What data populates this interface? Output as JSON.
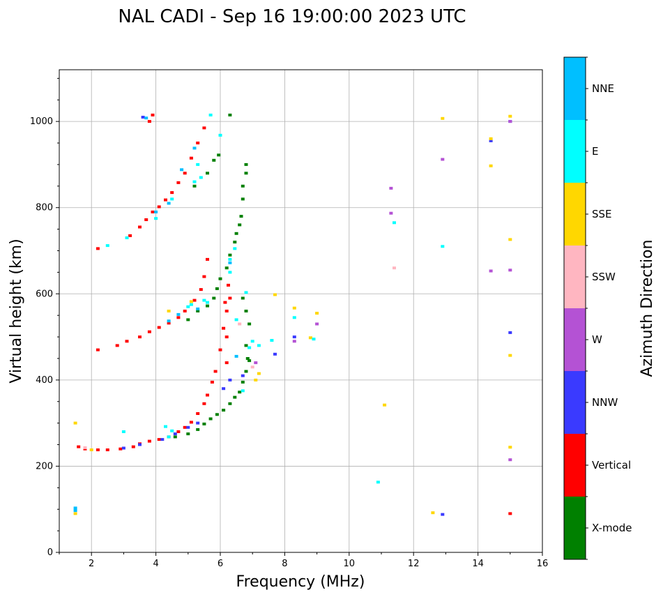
{
  "chart_data": {
    "type": "scatter",
    "title": "NAL CADI - Sep 16 19:00:00 2023 UTC",
    "xlabel": "Frequency (MHz)",
    "ylabel": "Virtual height (km)",
    "xlim": [
      1,
      16
    ],
    "ylim": [
      0,
      1120
    ],
    "xticks": [
      2,
      4,
      6,
      8,
      10,
      12,
      14,
      16
    ],
    "yticks": [
      0,
      200,
      400,
      600,
      800,
      1000
    ],
    "grid": true,
    "colorbar": {
      "label": "Azimuth Direction",
      "categories": [
        {
          "name": "X-mode",
          "color": "#008000"
        },
        {
          "name": "Vertical",
          "color": "#ff0000"
        },
        {
          "name": "NNW",
          "color": "#3a3aff"
        },
        {
          "name": "W",
          "color": "#b452d4"
        },
        {
          "name": "SSW",
          "color": "#ffb6c1"
        },
        {
          "name": "SSE",
          "color": "#ffd700"
        },
        {
          "name": "E",
          "color": "#00ffff"
        },
        {
          "name": "NNE",
          "color": "#00bfff"
        }
      ]
    },
    "series": [
      {
        "name": "Vertical",
        "points": [
          [
            1.6,
            245
          ],
          [
            1.8,
            240
          ],
          [
            2.2,
            238
          ],
          [
            2.5,
            238
          ],
          [
            2.9,
            240
          ],
          [
            3.3,
            245
          ],
          [
            3.5,
            252
          ],
          [
            3.8,
            258
          ],
          [
            4.1,
            262
          ],
          [
            4.4,
            268
          ],
          [
            4.7,
            280
          ],
          [
            4.9,
            290
          ],
          [
            5.1,
            302
          ],
          [
            5.3,
            322
          ],
          [
            5.5,
            345
          ],
          [
            5.6,
            365
          ],
          [
            5.75,
            395
          ],
          [
            5.85,
            420
          ],
          [
            6.0,
            470
          ],
          [
            6.1,
            520
          ],
          [
            6.15,
            580
          ],
          [
            2.2,
            470
          ],
          [
            2.8,
            480
          ],
          [
            3.1,
            490
          ],
          [
            3.5,
            500
          ],
          [
            3.8,
            512
          ],
          [
            4.1,
            522
          ],
          [
            4.4,
            532
          ],
          [
            4.7,
            545
          ],
          [
            4.9,
            560
          ],
          [
            5.2,
            585
          ],
          [
            5.4,
            610
          ],
          [
            5.5,
            640
          ],
          [
            5.6,
            680
          ],
          [
            2.2,
            705
          ],
          [
            3.2,
            735
          ],
          [
            3.5,
            755
          ],
          [
            3.7,
            772
          ],
          [
            3.9,
            790
          ],
          [
            4.1,
            802
          ],
          [
            4.3,
            818
          ],
          [
            4.5,
            835
          ],
          [
            4.7,
            858
          ],
          [
            4.9,
            880
          ],
          [
            5.1,
            915
          ],
          [
            5.3,
            950
          ],
          [
            5.5,
            985
          ],
          [
            3.8,
            1000
          ],
          [
            3.9,
            1015
          ],
          [
            6.2,
            440
          ],
          [
            6.2,
            500
          ],
          [
            6.2,
            560
          ],
          [
            6.3,
            590
          ],
          [
            6.25,
            620
          ],
          [
            15.0,
            90
          ]
        ]
      },
      {
        "name": "X-mode",
        "points": [
          [
            4.6,
            268
          ],
          [
            5.0,
            275
          ],
          [
            5.3,
            285
          ],
          [
            5.5,
            298
          ],
          [
            5.7,
            310
          ],
          [
            5.9,
            320
          ],
          [
            6.1,
            330
          ],
          [
            6.3,
            345
          ],
          [
            6.45,
            360
          ],
          [
            6.6,
            372
          ],
          [
            6.7,
            395
          ],
          [
            6.8,
            420
          ],
          [
            6.9,
            445
          ],
          [
            5.0,
            540
          ],
          [
            5.3,
            560
          ],
          [
            5.6,
            572
          ],
          [
            5.8,
            590
          ],
          [
            5.9,
            612
          ],
          [
            6.0,
            635
          ],
          [
            6.2,
            660
          ],
          [
            6.3,
            690
          ],
          [
            6.45,
            720
          ],
          [
            6.5,
            740
          ],
          [
            6.6,
            760
          ],
          [
            6.65,
            780
          ],
          [
            6.7,
            820
          ],
          [
            6.7,
            850
          ],
          [
            6.8,
            880
          ],
          [
            6.8,
            900
          ],
          [
            5.2,
            850
          ],
          [
            5.6,
            880
          ],
          [
            5.8,
            910
          ],
          [
            5.95,
            922
          ],
          [
            6.3,
            1015
          ],
          [
            6.7,
            590
          ],
          [
            6.8,
            560
          ],
          [
            6.9,
            530
          ],
          [
            6.8,
            480
          ],
          [
            6.85,
            450
          ]
        ]
      },
      {
        "name": "NNW",
        "points": [
          [
            3.0,
            242
          ],
          [
            3.5,
            250
          ],
          [
            4.2,
            262
          ],
          [
            4.6,
            275
          ],
          [
            5.0,
            290
          ],
          [
            5.3,
            300
          ],
          [
            6.1,
            380
          ],
          [
            6.3,
            400
          ],
          [
            6.7,
            410
          ],
          [
            8.3,
            500
          ],
          [
            7.7,
            460
          ],
          [
            14.4,
            955
          ],
          [
            12.9,
            88
          ],
          [
            15.0,
            510
          ],
          [
            3.6,
            1010
          ],
          [
            15.0,
            1000
          ]
        ]
      },
      {
        "name": "W",
        "points": [
          [
            7.1,
            440
          ],
          [
            8.3,
            490
          ],
          [
            9.0,
            530
          ],
          [
            11.3,
            845
          ],
          [
            11.3,
            787
          ],
          [
            12.9,
            912
          ],
          [
            14.4,
            653
          ],
          [
            15.0,
            655
          ],
          [
            15.0,
            215
          ],
          [
            15.0,
            1000
          ]
        ]
      },
      {
        "name": "SSW",
        "points": [
          [
            1.8,
            243
          ],
          [
            11.4,
            660
          ],
          [
            6.6,
            530
          ],
          [
            7.0,
            430
          ]
        ]
      },
      {
        "name": "SSE",
        "points": [
          [
            1.5,
            300
          ],
          [
            1.5,
            90
          ],
          [
            2.0,
            238
          ],
          [
            4.4,
            560
          ],
          [
            5.1,
            582
          ],
          [
            7.1,
            400
          ],
          [
            7.2,
            415
          ],
          [
            8.3,
            567
          ],
          [
            8.8,
            498
          ],
          [
            9.0,
            555
          ],
          [
            11.1,
            342
          ],
          [
            12.6,
            92
          ],
          [
            12.9,
            1007
          ],
          [
            14.4,
            897
          ],
          [
            14.4,
            960
          ],
          [
            15.0,
            726
          ],
          [
            15.0,
            457
          ],
          [
            15.0,
            244
          ],
          [
            15.0,
            1012
          ],
          [
            7.7,
            598
          ]
        ]
      },
      {
        "name": "E",
        "points": [
          [
            3.0,
            280
          ],
          [
            4.3,
            292
          ],
          [
            4.5,
            282
          ],
          [
            4.4,
            268
          ],
          [
            3.1,
            730
          ],
          [
            2.5,
            712
          ],
          [
            4.0,
            775
          ],
          [
            4.5,
            820
          ],
          [
            5.2,
            860
          ],
          [
            5.4,
            870
          ],
          [
            5.3,
            900
          ],
          [
            5.0,
            570
          ],
          [
            5.1,
            575
          ],
          [
            5.6,
            580
          ],
          [
            5.5,
            585
          ],
          [
            6.3,
            680
          ],
          [
            6.45,
            705
          ],
          [
            6.9,
            475
          ],
          [
            7.0,
            490
          ],
          [
            7.2,
            480
          ],
          [
            7.6,
            492
          ],
          [
            6.8,
            603
          ],
          [
            6.5,
            540
          ],
          [
            8.3,
            545
          ],
          [
            8.9,
            495
          ],
          [
            10.9,
            163
          ],
          [
            11.4,
            765
          ],
          [
            12.9,
            710
          ],
          [
            6.0,
            968
          ],
          [
            5.7,
            1015
          ],
          [
            6.3,
            650
          ],
          [
            6.7,
            375
          ]
        ]
      },
      {
        "name": "NNE",
        "points": [
          [
            1.5,
            103
          ],
          [
            1.5,
            97
          ],
          [
            3.7,
            1008
          ],
          [
            4.0,
            790
          ],
          [
            4.4,
            810
          ],
          [
            4.8,
            888
          ],
          [
            5.2,
            938
          ],
          [
            4.4,
            537
          ],
          [
            4.7,
            552
          ],
          [
            5.3,
            565
          ],
          [
            6.3,
            672
          ],
          [
            6.5,
            455
          ]
        ]
      }
    ]
  }
}
